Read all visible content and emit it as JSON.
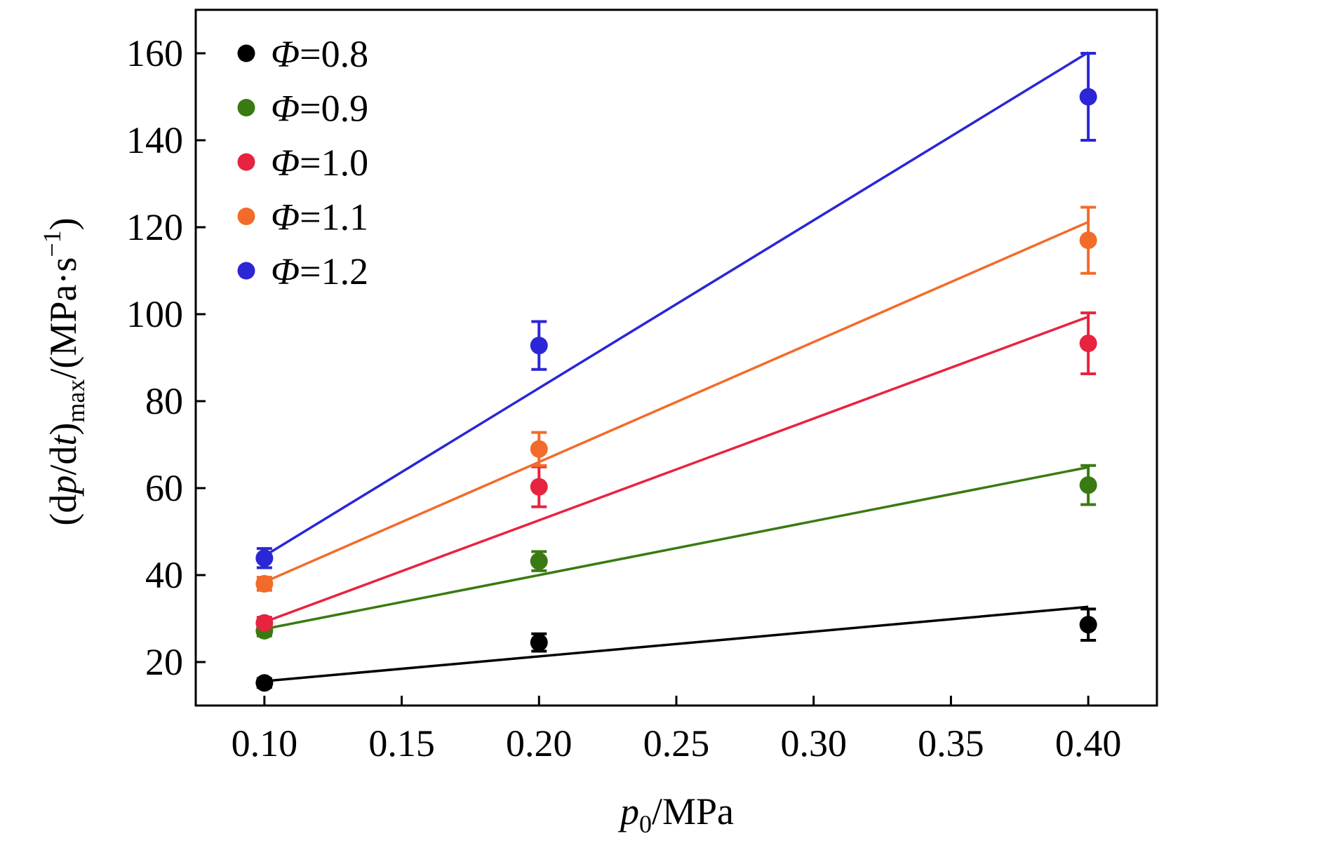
{
  "chart_data": {
    "type": "scatter",
    "title": "",
    "xlabel": {
      "var": "p",
      "sub": "0",
      "unit": "/MPa"
    },
    "ylabel": {
      "open": "(d",
      "var1": "p",
      "mid": "/d",
      "var2": "t",
      "close": ")",
      "sub": "max",
      "unit": "/(MPa·s",
      "sup": "−1",
      "end": ")"
    },
    "xlim": [
      0.075,
      0.425
    ],
    "ylim": [
      10,
      170
    ],
    "xticks": [
      0.1,
      0.15,
      0.2,
      0.25,
      0.3,
      0.35,
      0.4
    ],
    "xtick_labels": [
      "0.10",
      "0.15",
      "0.20",
      "0.25",
      "0.30",
      "0.35",
      "0.40"
    ],
    "yticks": [
      20,
      40,
      60,
      80,
      100,
      120,
      140,
      160
    ],
    "ytick_labels": [
      "20",
      "40",
      "60",
      "80",
      "100",
      "120",
      "140",
      "160"
    ],
    "grid": false,
    "legend_position": "top-left",
    "x": [
      0.1,
      0.2,
      0.4
    ],
    "series": [
      {
        "name": "Φ=0.8",
        "sym": "Φ",
        "val": "=0.8",
        "color": "#000000",
        "values": [
          15.2,
          24.5,
          28.6
        ],
        "errors": [
          1.0,
          2.0,
          3.6
        ],
        "fit": [
          15.6,
          21.3,
          32.7
        ]
      },
      {
        "name": "Φ=0.9",
        "sym": "Φ",
        "val": "=0.9",
        "color": "#3a7a12",
        "values": [
          27.2,
          43.2,
          60.7
        ],
        "errors": [
          1.2,
          2.2,
          4.5
        ],
        "fit": [
          27.6,
          40.0,
          64.8
        ]
      },
      {
        "name": "Φ=1.0",
        "sym": "Φ",
        "val": "=1.0",
        "color": "#e8233f",
        "values": [
          29.0,
          60.3,
          93.3
        ],
        "errors": [
          1.3,
          4.6,
          7.0
        ],
        "fit": [
          29.2,
          52.6,
          99.4
        ]
      },
      {
        "name": "Φ=1.1",
        "sym": "Φ",
        "val": "=1.1",
        "color": "#f26b2a",
        "values": [
          38.0,
          69.0,
          117.0
        ],
        "errors": [
          1.5,
          3.8,
          7.6
        ],
        "fit": [
          38.4,
          66.0,
          121.2
        ]
      },
      {
        "name": "Φ=1.2",
        "sym": "Φ",
        "val": "=1.2",
        "color": "#2b26d6",
        "values": [
          43.9,
          92.8,
          150.0
        ],
        "errors": [
          2.2,
          5.5,
          10.0
        ],
        "fit": [
          44.4,
          83.0,
          160.2
        ]
      }
    ]
  }
}
